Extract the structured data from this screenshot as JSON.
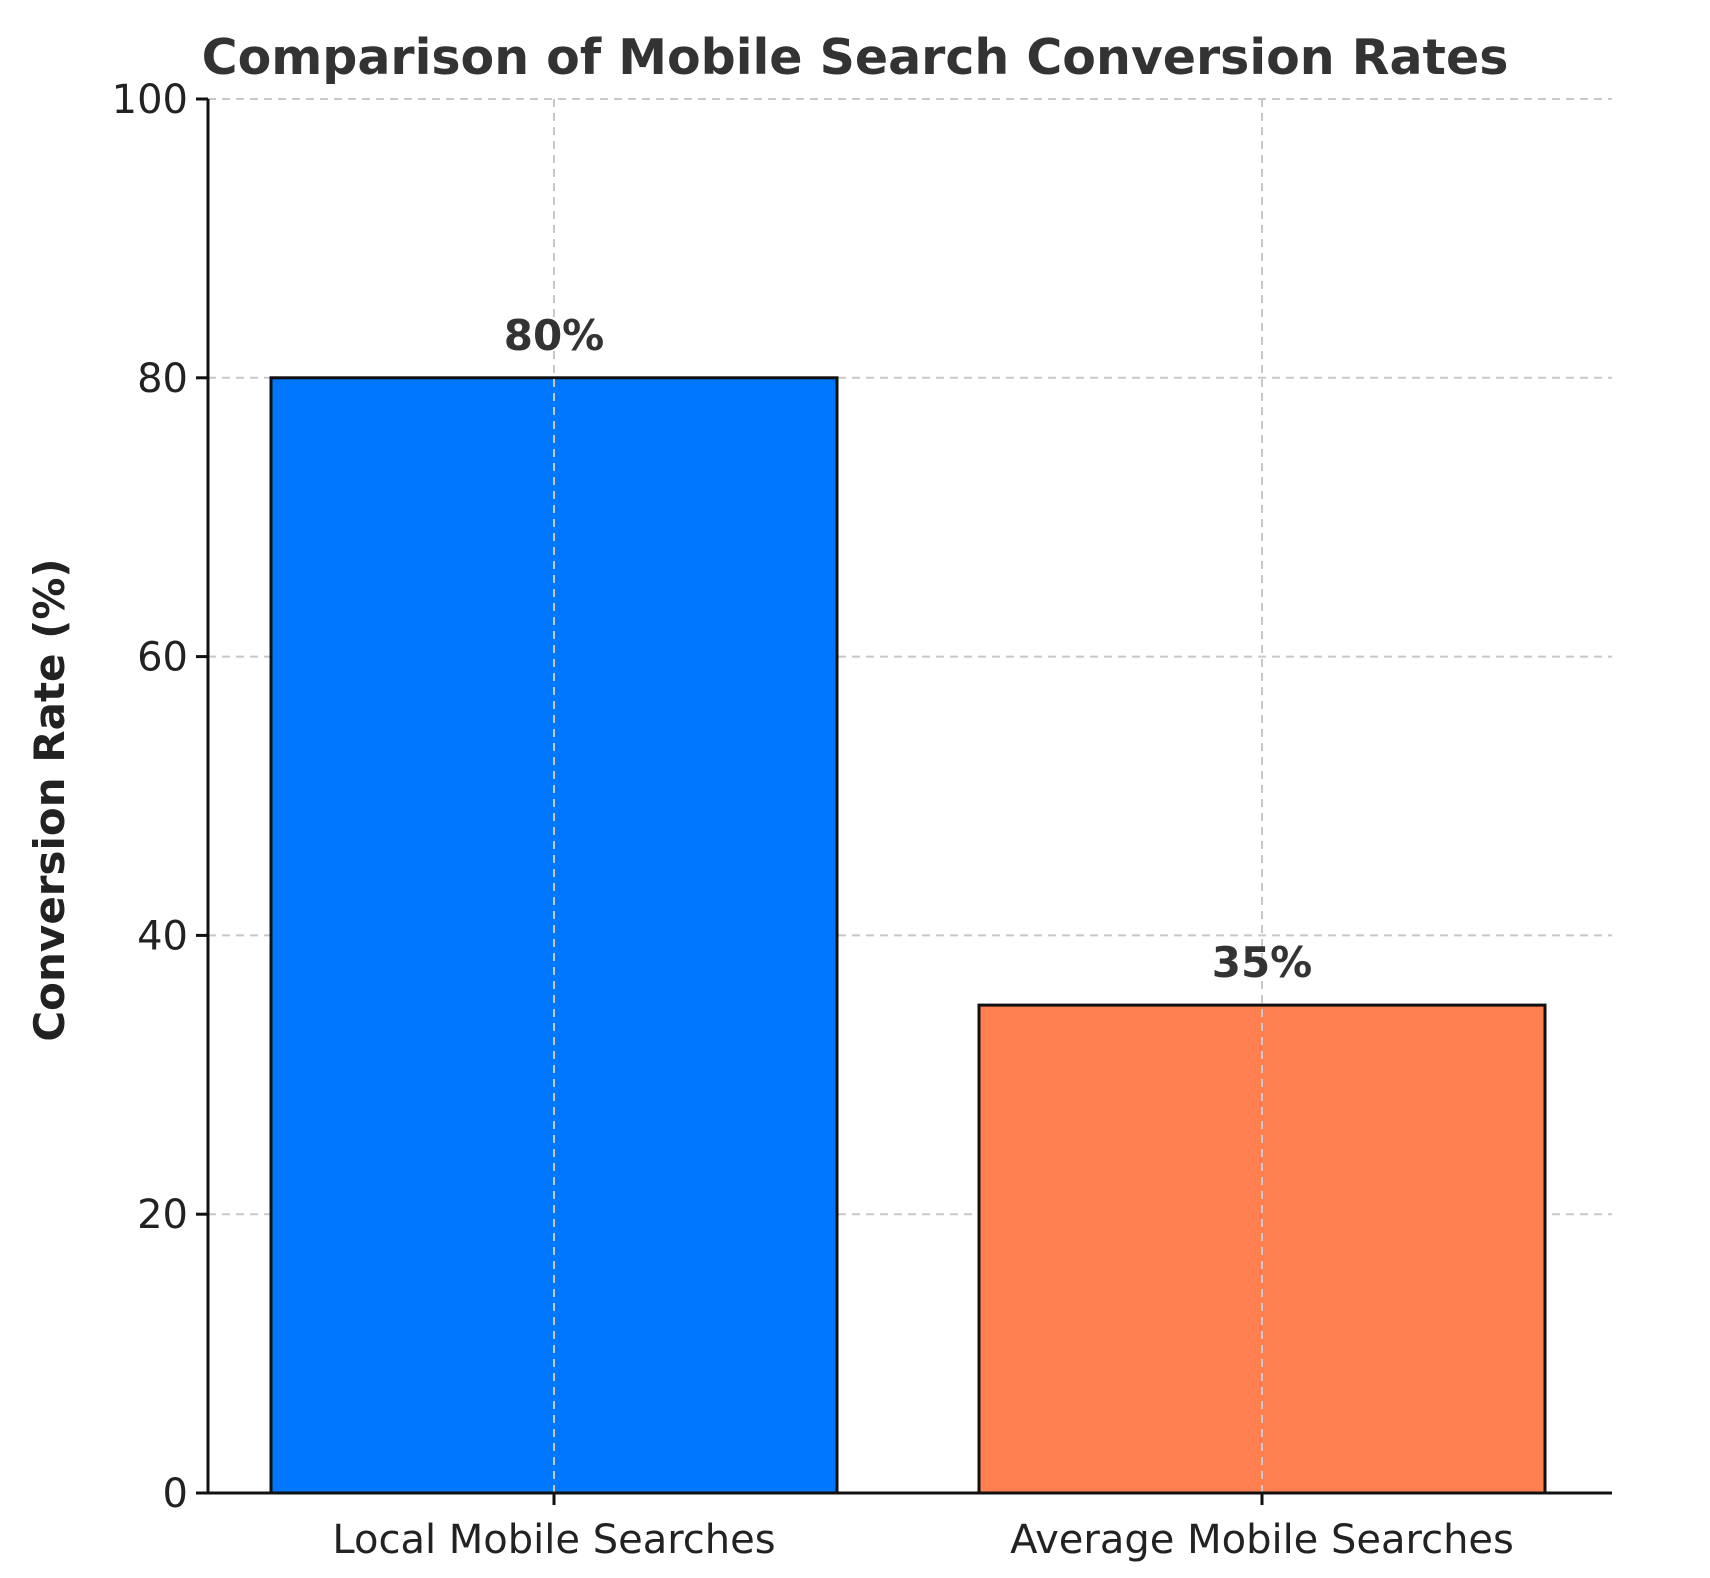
{
  "chart_data": {
    "type": "bar",
    "title": "Comparison of Mobile Search Conversion Rates",
    "xlabel": "",
    "ylabel": "Conversion Rate (%)",
    "categories": [
      "Local Mobile Searches",
      "Average Mobile Searches"
    ],
    "values": [
      80,
      35
    ],
    "value_labels": [
      "80%",
      "35%"
    ],
    "colors": [
      "#0077ff",
      "#ff7f50"
    ],
    "ylim": [
      0,
      100
    ],
    "yticks": [
      0,
      20,
      40,
      60,
      80,
      100
    ],
    "ytick_labels": [
      "0",
      "20",
      "40",
      "60",
      "80",
      "100"
    ],
    "grid": true,
    "legend": "none"
  }
}
